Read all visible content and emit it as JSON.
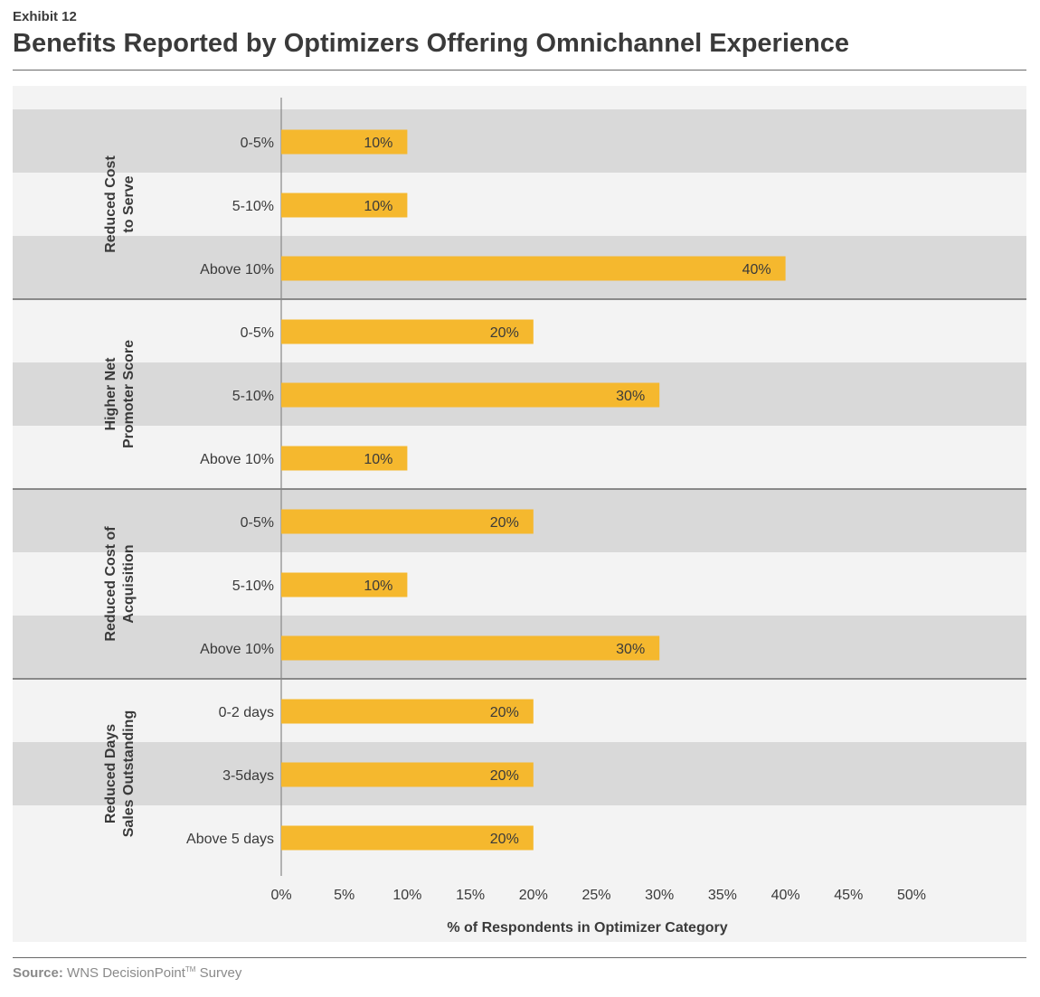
{
  "header": {
    "exhibit_label": "Exhibit 12",
    "title": "Benefits Reported by Optimizers Offering Omnichannel Experience"
  },
  "footer": {
    "source_label": "Source:",
    "source_text": "WNS DecisionPoint",
    "source_tm": "TM",
    "source_suffix": " Survey"
  },
  "colors": {
    "bar": "#f5b82e",
    "band_dark": "#d9d9d9",
    "band_light": "#f3f3f3",
    "text": "#3a3a3a"
  },
  "chart_data": {
    "type": "bar",
    "orientation": "horizontal",
    "xlabel": "% of Respondents in Optimizer Category",
    "xlim": [
      0,
      50
    ],
    "xticks": [
      "0%",
      "5%",
      "10%",
      "15%",
      "20%",
      "25%",
      "30%",
      "35%",
      "40%",
      "45%",
      "50%"
    ],
    "value_suffix": "%",
    "groups": [
      {
        "name": [
          "Reduced Cost",
          "to Serve"
        ],
        "categories": [
          "0-5%",
          "5-10%",
          "Above 10%"
        ],
        "values": [
          10,
          10,
          40
        ]
      },
      {
        "name": [
          "Higher Net",
          "Promoter Score"
        ],
        "categories": [
          "0-5%",
          "5-10%",
          "Above 10%"
        ],
        "values": [
          20,
          30,
          10
        ]
      },
      {
        "name": [
          "Reduced Cost of",
          "Acquisition"
        ],
        "categories": [
          "0-5%",
          "5-10%",
          "Above 10%"
        ],
        "values": [
          20,
          10,
          30
        ]
      },
      {
        "name": [
          "Reduced Days",
          "Sales Outstanding"
        ],
        "categories": [
          "0-2 days",
          "3-5days",
          "Above 5 days"
        ],
        "values": [
          20,
          20,
          20
        ]
      }
    ]
  }
}
